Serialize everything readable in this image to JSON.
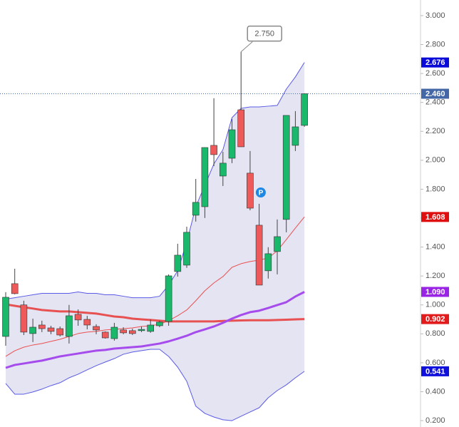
{
  "chart_data": {
    "type": "candlestick",
    "ylim": [
      0.156,
      3.108
    ],
    "yticks": [
      {
        "value": 0.2,
        "label": "0.200"
      },
      {
        "value": 0.4,
        "label": "0.400"
      },
      {
        "value": 0.6,
        "label": "0.600"
      },
      {
        "value": 0.8,
        "label": "0.800"
      },
      {
        "value": 1.0,
        "label": "1.000"
      },
      {
        "value": 1.2,
        "label": "1.200"
      },
      {
        "value": 1.4,
        "label": "1.400"
      },
      {
        "value": 1.6,
        "label": "1.600"
      },
      {
        "value": 1.8,
        "label": "1.800"
      },
      {
        "value": 2.0,
        "label": "2.000"
      },
      {
        "value": 2.2,
        "label": "2.200"
      },
      {
        "value": 2.4,
        "label": "2.400"
      },
      {
        "value": 2.6,
        "label": "2.600"
      },
      {
        "value": 2.8,
        "label": "2.800"
      },
      {
        "value": 3.0,
        "label": "3.000"
      }
    ],
    "up_color": "#19b86b",
    "down_color": "#ee5a5a",
    "band_fill": "#e4e4f3",
    "open": [
      0.782,
      1.147,
      1.0,
      0.802,
      0.861,
      0.841,
      0.836,
      0.782,
      0.935,
      0.9,
      0.851,
      0.812,
      0.767,
      0.827,
      0.822,
      0.822,
      0.817,
      0.856,
      0.886,
      1.231,
      1.275,
      1.62,
      1.679,
      2.103,
      1.891,
      2.014,
      2.349,
      1.911,
      1.551,
      1.236,
      1.369,
      1.591,
      2.103,
      2.241
    ],
    "high": [
      1.088,
      1.25,
      1.029,
      0.905,
      0.891,
      0.856,
      0.851,
      1.0,
      0.969,
      0.925,
      0.866,
      0.817,
      0.876,
      0.846,
      0.836,
      0.851,
      0.9,
      0.891,
      1.211,
      1.423,
      1.541,
      1.871,
      2.088,
      2.429,
      2.059,
      2.286,
      2.75,
      2.064,
      1.699,
      1.399,
      1.591,
      2.31,
      2.34,
      2.463
    ],
    "low": [
      0.718,
      1.073,
      0.792,
      0.743,
      0.812,
      0.797,
      0.782,
      0.733,
      0.856,
      0.831,
      0.797,
      0.767,
      0.753,
      0.797,
      0.792,
      0.812,
      0.807,
      0.846,
      0.856,
      1.196,
      1.256,
      1.576,
      1.601,
      1.96,
      1.822,
      1.98,
      2.093,
      1.654,
      1.137,
      1.182,
      1.211,
      1.502,
      2.064,
      2.231
    ],
    "close": [
      1.053,
      1.078,
      0.812,
      0.846,
      0.836,
      0.817,
      0.792,
      0.925,
      0.896,
      0.861,
      0.827,
      0.772,
      0.846,
      0.807,
      0.802,
      0.831,
      0.861,
      0.881,
      1.201,
      1.344,
      1.502,
      1.709,
      2.088,
      2.039,
      1.98,
      2.211,
      2.093,
      1.669,
      1.137,
      1.354,
      1.472,
      2.31,
      2.231,
      2.46
    ],
    "series": [
      {
        "color": "#e85151",
        "width": 3,
        "values": [
          1.004,
          0.994,
          0.984,
          0.975,
          0.965,
          0.96,
          0.955,
          0.955,
          0.95,
          0.945,
          0.94,
          0.93,
          0.92,
          0.915,
          0.905,
          0.9,
          0.896,
          0.891,
          0.886,
          0.886,
          0.886,
          0.886,
          0.886,
          0.886,
          0.889,
          0.891,
          0.893,
          0.894,
          0.894,
          0.894,
          0.896,
          0.898,
          0.9,
          0.902
        ]
      },
      {
        "color": "#a64cec",
        "width": 3,
        "values": [
          0.565,
          0.585,
          0.595,
          0.605,
          0.615,
          0.629,
          0.644,
          0.654,
          0.664,
          0.674,
          0.684,
          0.689,
          0.698,
          0.703,
          0.708,
          0.713,
          0.723,
          0.733,
          0.748,
          0.767,
          0.787,
          0.812,
          0.831,
          0.851,
          0.876,
          0.905,
          0.93,
          0.95,
          0.96,
          0.979,
          0.999,
          1.019,
          1.058,
          1.09
        ]
      },
      {
        "color": "#5a5ae6",
        "width": 1,
        "values": [
          1.04,
          1.05,
          1.06,
          1.07,
          1.08,
          1.08,
          1.08,
          1.08,
          1.09,
          1.08,
          1.08,
          1.07,
          1.07,
          1.06,
          1.05,
          1.05,
          1.05,
          1.06,
          1.137,
          1.236,
          1.433,
          1.679,
          1.827,
          1.975,
          2.073,
          2.295,
          2.359,
          2.369,
          2.369,
          2.374,
          2.379,
          2.492,
          2.576,
          2.676
        ]
      },
      {
        "color": "#5a5ae6",
        "width": 1,
        "values": [
          0.457,
          0.383,
          0.383,
          0.398,
          0.418,
          0.442,
          0.462,
          0.496,
          0.521,
          0.551,
          0.58,
          0.605,
          0.629,
          0.659,
          0.674,
          0.684,
          0.693,
          0.693,
          0.644,
          0.57,
          0.472,
          0.3,
          0.25,
          0.225,
          0.206,
          0.2,
          0.23,
          0.26,
          0.289,
          0.358,
          0.408,
          0.447,
          0.496,
          0.541
        ]
      },
      {
        "color": "#ec5050",
        "width": 1,
        "values": [
          0.644,
          0.683,
          0.708,
          0.723,
          0.733,
          0.748,
          0.762,
          0.782,
          0.802,
          0.812,
          0.817,
          0.827,
          0.831,
          0.836,
          0.841,
          0.851,
          0.856,
          0.866,
          0.891,
          0.925,
          0.965,
          1.029,
          1.098,
          1.152,
          1.196,
          1.26,
          1.285,
          1.3,
          1.31,
          1.324,
          1.374,
          1.452,
          1.531,
          1.608
        ]
      }
    ],
    "price_labels": [
      {
        "value": 2.676,
        "label": "2.676",
        "color": "#0b0bd9"
      },
      {
        "value": 2.46,
        "label": "2.460",
        "color": "#4467a8"
      },
      {
        "value": 1.608,
        "label": "1.608",
        "color": "#e00f0f"
      },
      {
        "value": 1.09,
        "label": "1.090",
        "color": "#9a24e6"
      },
      {
        "value": 0.902,
        "label": "0.902",
        "color": "#e21c1c"
      },
      {
        "value": 0.541,
        "label": "0.541",
        "color": "#1010dd"
      }
    ],
    "annotation": {
      "value": 2.75,
      "label": "2.750"
    },
    "marker_label": "P"
  }
}
